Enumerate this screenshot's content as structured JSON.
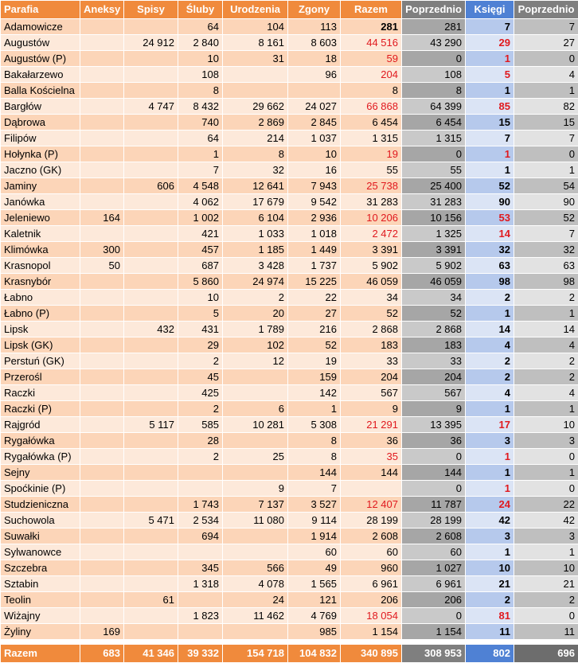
{
  "headers": [
    "Parafia",
    "Aneksy",
    "Spisy",
    "Śluby",
    "Urodzenia",
    "Zgony",
    "Razem",
    "Poprzednio",
    "Księgi",
    "Poprzednio"
  ],
  "rows": [
    [
      "Adamowicze",
      "",
      "",
      "64",
      "104",
      "113",
      "281",
      "281",
      "7",
      "7"
    ],
    [
      "Augustów",
      "",
      "24 912",
      "2 840",
      "8 161",
      "8 603",
      "44 516",
      "43 290",
      "29",
      "27"
    ],
    [
      "Augustów (P)",
      "",
      "",
      "10",
      "31",
      "18",
      "59",
      "0",
      "1",
      "0"
    ],
    [
      "Bakałarzewo",
      "",
      "",
      "108",
      "",
      "96",
      "204",
      "108",
      "5",
      "4"
    ],
    [
      "Balla Kościelna",
      "",
      "",
      "8",
      "",
      "",
      "8",
      "8",
      "1",
      "1"
    ],
    [
      "Bargłów",
      "",
      "4 747",
      "8 432",
      "29 662",
      "24 027",
      "66 868",
      "64 399",
      "85",
      "82"
    ],
    [
      "Dąbrowa",
      "",
      "",
      "740",
      "2 869",
      "2 845",
      "6 454",
      "6 454",
      "15",
      "15"
    ],
    [
      "Filipów",
      "",
      "",
      "64",
      "214",
      "1 037",
      "1 315",
      "1 315",
      "7",
      "7"
    ],
    [
      "Hołynka (P)",
      "",
      "",
      "1",
      "8",
      "10",
      "19",
      "0",
      "1",
      "0"
    ],
    [
      "Jaczno (GK)",
      "",
      "",
      "7",
      "32",
      "16",
      "55",
      "55",
      "1",
      "1"
    ],
    [
      "Jaminy",
      "",
      "606",
      "4 548",
      "12 641",
      "7 943",
      "25 738",
      "25 400",
      "52",
      "54"
    ],
    [
      "Janówka",
      "",
      "",
      "4 062",
      "17 679",
      "9 542",
      "31 283",
      "31 283",
      "90",
      "90"
    ],
    [
      "Jeleniewo",
      "164",
      "",
      "1 002",
      "6 104",
      "2 936",
      "10 206",
      "10 156",
      "53",
      "52"
    ],
    [
      "Kaletnik",
      "",
      "",
      "421",
      "1 033",
      "1 018",
      "2 472",
      "1 325",
      "14",
      "7"
    ],
    [
      "Klimówka",
      "300",
      "",
      "457",
      "1 185",
      "1 449",
      "3 391",
      "3 391",
      "32",
      "32"
    ],
    [
      "Krasnopol",
      "50",
      "",
      "687",
      "3 428",
      "1 737",
      "5 902",
      "5 902",
      "63",
      "63"
    ],
    [
      "Krasnybór",
      "",
      "",
      "5 860",
      "24 974",
      "15 225",
      "46 059",
      "46 059",
      "98",
      "98"
    ],
    [
      "Łabno",
      "",
      "",
      "10",
      "2",
      "22",
      "34",
      "34",
      "2",
      "2"
    ],
    [
      "Łabno (P)",
      "",
      "",
      "5",
      "20",
      "27",
      "52",
      "52",
      "1",
      "1"
    ],
    [
      "Lipsk",
      "",
      "432",
      "431",
      "1 789",
      "216",
      "2 868",
      "2 868",
      "14",
      "14"
    ],
    [
      "Lipsk (GK)",
      "",
      "",
      "29",
      "102",
      "52",
      "183",
      "183",
      "4",
      "4"
    ],
    [
      "Perstuń (GK)",
      "",
      "",
      "2",
      "12",
      "19",
      "33",
      "33",
      "2",
      "2"
    ],
    [
      "Przerośl",
      "",
      "",
      "45",
      "",
      "159",
      "204",
      "204",
      "2",
      "2"
    ],
    [
      "Raczki",
      "",
      "",
      "425",
      "",
      "142",
      "567",
      "567",
      "4",
      "4"
    ],
    [
      "Raczki (P)",
      "",
      "",
      "2",
      "6",
      "1",
      "9",
      "9",
      "1",
      "1"
    ],
    [
      "Rajgród",
      "",
      "5 117",
      "585",
      "10 281",
      "5 308",
      "21 291",
      "13 395",
      "17",
      "10"
    ],
    [
      "Rygałówka",
      "",
      "",
      "28",
      "",
      "8",
      "36",
      "36",
      "3",
      "3"
    ],
    [
      "Rygałówka (P)",
      "",
      "",
      "2",
      "25",
      "8",
      "35",
      "0",
      "1",
      "0"
    ],
    [
      "Sejny",
      "",
      "",
      "",
      "",
      "144",
      "144",
      "144",
      "1",
      "1"
    ],
    [
      "Spoćkinie (P)",
      "",
      "",
      "",
      "9",
      "7",
      "",
      "0",
      "1",
      "0"
    ],
    [
      "Studzieniczna",
      "",
      "",
      "1 743",
      "7 137",
      "3 527",
      "12 407",
      "11 787",
      "24",
      "22"
    ],
    [
      "Suchowola",
      "",
      "5 471",
      "2 534",
      "11 080",
      "9 114",
      "28 199",
      "28 199",
      "42",
      "42"
    ],
    [
      "Suwałki",
      "",
      "",
      "694",
      "",
      "1 914",
      "2 608",
      "2 608",
      "3",
      "3"
    ],
    [
      "Sylwanowce",
      "",
      "",
      "",
      "",
      "60",
      "60",
      "60",
      "1",
      "1"
    ],
    [
      "Szczebra",
      "",
      "",
      "345",
      "566",
      "49",
      "960",
      "1 027",
      "10",
      "10"
    ],
    [
      "Sztabin",
      "",
      "",
      "1 318",
      "4 078",
      "1 565",
      "6 961",
      "6 961",
      "21",
      "21"
    ],
    [
      "Teolin",
      "",
      "61",
      "",
      "24",
      "121",
      "206",
      "206",
      "2",
      "2"
    ],
    [
      "Wiżajny",
      "",
      "",
      "1 823",
      "11 462",
      "4 769",
      "18 054",
      "0",
      "81",
      "0"
    ],
    [
      "Żyliny",
      "169",
      "",
      "",
      "",
      "985",
      "1 154",
      "1 154",
      "11",
      "11"
    ]
  ],
  "red_razem_rows": [
    1,
    2,
    3,
    5,
    8,
    10,
    12,
    13,
    25,
    27,
    30,
    37
  ],
  "red_ksiegi_rows": [
    1,
    2,
    3,
    5,
    8,
    12,
    13,
    25,
    27,
    29,
    30,
    37
  ],
  "bold_razem_rows": [
    0
  ],
  "totals": [
    "Razem",
    "683",
    "41 346",
    "39 332",
    "154 718",
    "104 832",
    "340 895",
    "308 953",
    "802",
    "696"
  ],
  "colors": {
    "orange_header": "#f08a3c",
    "orange_odd": "#fcd5b8",
    "orange_even": "#fde9da",
    "gray_header": "#7f7f7f",
    "blue_header": "#4f81d4",
    "red_text": "#e0191e"
  }
}
